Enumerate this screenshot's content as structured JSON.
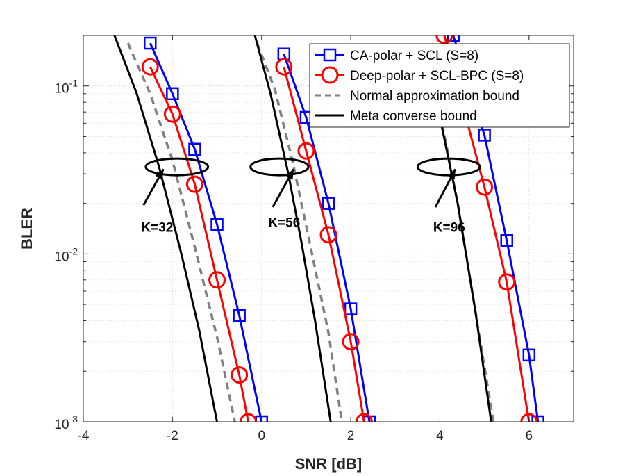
{
  "chart_data": {
    "type": "line",
    "title": "",
    "xlabel": "SNR [dB]",
    "ylabel": "BLER",
    "xlim": [
      -4,
      7
    ],
    "ylim": [
      0.001,
      0.2
    ],
    "yscale": "log",
    "grid": true,
    "legend_position": "top-right",
    "x_ticks": [
      -4,
      -2,
      0,
      2,
      4,
      6
    ],
    "x_tick_labels": [
      "-4",
      "-2",
      "0",
      "2",
      "4",
      "6"
    ],
    "y_ticks": [
      0.001,
      0.01,
      0.1
    ],
    "y_tick_labels": [
      {
        "base": "10",
        "exp": "-3"
      },
      {
        "base": "10",
        "exp": "-2"
      },
      {
        "base": "10",
        "exp": "-1"
      }
    ],
    "series": [
      {
        "name": "CA-polar + SCL (S=8)",
        "color": "#0000ff",
        "dash": "solid",
        "marker": "square",
        "groups": [
          {
            "x": [
              -2.5,
              -2.0,
              -1.5,
              -1.0,
              -0.5,
              0.0
            ],
            "y": [
              0.18,
              0.09,
              0.042,
              0.015,
              0.0043,
              0.001
            ]
          },
          {
            "x": [
              0.5,
              1.0,
              1.5,
              2.0,
              2.42
            ],
            "y": [
              0.155,
              0.065,
              0.02,
              0.0047,
              0.001
            ]
          },
          {
            "x": [
              4.3,
              5.0,
              5.5,
              6.0,
              6.2
            ],
            "y": [
              0.2,
              0.051,
              0.012,
              0.0025,
              0.001
            ]
          }
        ]
      },
      {
        "name": "Deep-polar + SCL-BPC (S=8)",
        "color": "#ff0000",
        "dash": "solid",
        "marker": "circle",
        "groups": [
          {
            "x": [
              -2.5,
              -2.0,
              -1.5,
              -1.0,
              -0.5,
              -0.3
            ],
            "y": [
              0.13,
              0.068,
              0.026,
              0.007,
              0.0019,
              0.001
            ]
          },
          {
            "x": [
              0.5,
              1.0,
              1.5,
              2.0,
              2.3
            ],
            "y": [
              0.13,
              0.041,
              0.013,
              0.003,
              0.001
            ]
          },
          {
            "x": [
              4.1,
              5.0,
              5.5,
              6.0
            ],
            "y": [
              0.2,
              0.025,
              0.0068,
              0.001
            ]
          }
        ]
      },
      {
        "name": "Normal approximation bound",
        "color": "#808080",
        "dash": "dashed",
        "marker": "none",
        "groups": [
          {
            "x": [
              -3.0,
              -2.5,
              -2.0,
              -1.5,
              -1.0,
              -0.6
            ],
            "y": [
              0.18,
              0.09,
              0.036,
              0.011,
              0.0032,
              0.001
            ]
          },
          {
            "x": [
              -0.1,
              0.3,
              0.7,
              1.1,
              1.5,
              1.8
            ],
            "y": [
              0.18,
              0.095,
              0.035,
              0.011,
              0.0034,
              0.001
            ]
          },
          {
            "x": [
              4.0,
              4.4,
              4.8,
              5.2
            ],
            "y": [
              0.07,
              0.02,
              0.0045,
              0.001
            ]
          }
        ]
      },
      {
        "name": "Meta converse bound",
        "color": "#000000",
        "dash": "solid",
        "marker": "none",
        "groups": [
          {
            "x": [
              -3.3,
              -2.8,
              -2.3,
              -1.8,
              -1.4,
              -1.0
            ],
            "y": [
              0.2,
              0.09,
              0.033,
              0.01,
              0.0035,
              0.001
            ]
          },
          {
            "x": [
              -0.15,
              0.2,
              0.6,
              0.9,
              1.2,
              1.55
            ],
            "y": [
              0.2,
              0.09,
              0.03,
              0.0115,
              0.004,
              0.001
            ]
          },
          {
            "x": [
              4.0,
              4.4,
              4.8,
              5.15
            ],
            "y": [
              0.065,
              0.02,
              0.0045,
              0.001
            ]
          }
        ]
      }
    ],
    "annotations": [
      {
        "text": "K=32",
        "ellipse_center": [
          -1.9,
          0.033
        ],
        "ellipse_width_snr": 1.4,
        "arrow_from": [
          -2.65,
          0.0195
        ],
        "arrow_to": [
          -2.2,
          0.032
        ],
        "text_at": [
          -2.7,
          0.0145
        ]
      },
      {
        "text": "K=56",
        "ellipse_center": [
          0.4,
          0.033
        ],
        "ellipse_width_snr": 1.3,
        "arrow_from": [
          0.25,
          0.019
        ],
        "arrow_to": [
          0.72,
          0.032
        ],
        "text_at": [
          0.15,
          0.0155
        ]
      },
      {
        "text": "K=96",
        "ellipse_center": [
          4.2,
          0.033
        ],
        "ellipse_width_snr": 1.4,
        "arrow_from": [
          3.9,
          0.019
        ],
        "arrow_to": [
          4.35,
          0.032
        ],
        "text_at": [
          3.85,
          0.0145
        ]
      }
    ]
  }
}
